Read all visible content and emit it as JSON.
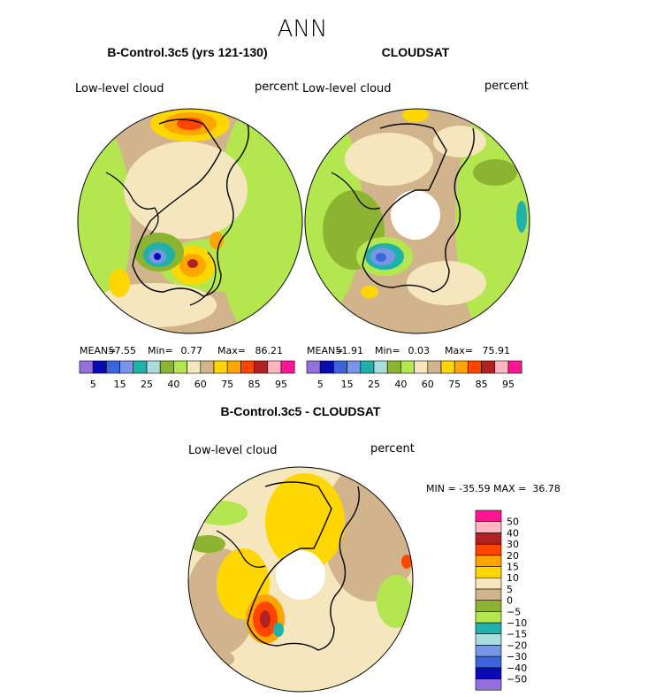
{
  "figure_title": "ANN",
  "palette": {
    "abs": [
      "#9370db",
      "#0a0ab4",
      "#3c64dc",
      "#7896e6",
      "#20b2aa",
      "#aadcdc",
      "#8cb432",
      "#b4e650",
      "#f5e6be",
      "#d2b48c",
      "#ffd700",
      "#ffa500",
      "#ff4500",
      "#b22222",
      "#ffb6c1",
      "#ff1493"
    ],
    "diff": [
      "#9370db",
      "#0a0ab4",
      "#3c64dc",
      "#7896e6",
      "#aadcdc",
      "#20b2aa",
      "#b4e650",
      "#8cb432",
      "#d2b48c",
      "#f5e6be",
      "#ffd700",
      "#ffa500",
      "#ff4500",
      "#b22222",
      "#ffb6c1",
      "#ff1493"
    ]
  },
  "chart_data": [
    {
      "type": "heatmap",
      "projection": "polar-stereographic",
      "title": "B-Control.3c5 (yrs 121-130)",
      "variable": "Low-level cloud",
      "units": "percent",
      "stats": {
        "mean_label": "MEAN=",
        "mean": "57.55",
        "min_label": "Min=",
        "min": "0.77",
        "max_label": "Max=",
        "max": "86.21"
      },
      "colorbar": {
        "orientation": "horizontal",
        "tick_labels": [
          "5",
          "15",
          "25",
          "40",
          "60",
          "75",
          "85",
          "95"
        ]
      }
    },
    {
      "type": "heatmap",
      "projection": "polar-stereographic",
      "title": "CLOUDSAT",
      "variable": "Low-level cloud",
      "units": "percent",
      "stats": {
        "mean_label": "MEAN=",
        "mean": "51.91",
        "min_label": "Min=",
        "min": "0.03",
        "max_label": "Max=",
        "max": "75.91"
      },
      "colorbar": {
        "orientation": "horizontal",
        "tick_labels": [
          "5",
          "15",
          "25",
          "40",
          "60",
          "75",
          "85",
          "95"
        ]
      }
    },
    {
      "type": "heatmap",
      "projection": "polar-stereographic",
      "title": "B-Control.3c5 - CLOUDSAT",
      "variable": "Low-level cloud",
      "units": "percent",
      "stats_text": "MIN = -35.59 MAX =  36.78",
      "colorbar": {
        "orientation": "vertical",
        "tick_labels": [
          "50",
          "40",
          "30",
          "20",
          "15",
          "10",
          "5",
          "0",
          "−5",
          "−10",
          "−15",
          "−20",
          "−30",
          "−40",
          "−50"
        ]
      }
    }
  ]
}
